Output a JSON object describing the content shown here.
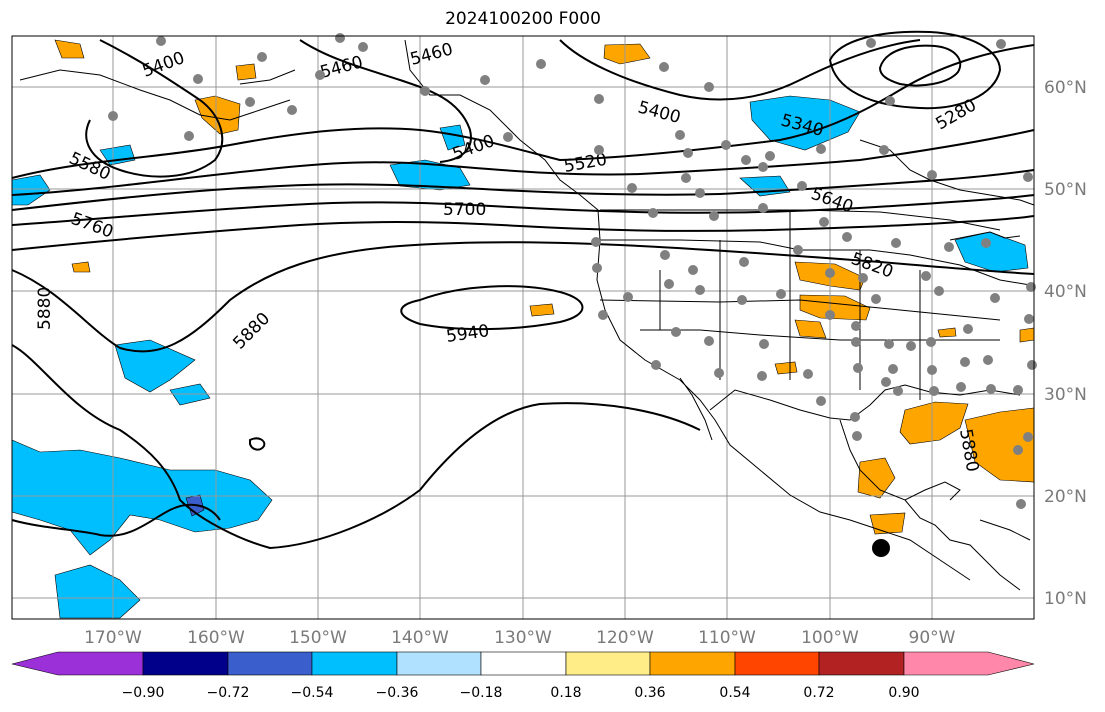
{
  "title": "2024100200 F000",
  "lat_labels": [
    "60°N",
    "50°N",
    "40°N",
    "30°N",
    "20°N",
    "10°N"
  ],
  "lon_labels": [
    "170°W",
    "160°W",
    "150°W",
    "140°W",
    "130°W",
    "120°W",
    "110°W",
    "100°W",
    "90°W"
  ],
  "contour_labels": [
    "5400",
    "5460",
    "5460",
    "5400",
    "5340",
    "5280",
    "5580",
    "5400",
    "5520",
    "5640",
    "5700",
    "5760",
    "5820",
    "5880",
    "5880",
    "5940",
    "5880"
  ],
  "colorbar": {
    "tick_labels": [
      "−0.90",
      "−0.72",
      "−0.54",
      "−0.36",
      "−0.18",
      "0.18",
      "0.36",
      "0.54",
      "0.72",
      "0.90"
    ],
    "colors": [
      "#9b30d9",
      "#00008b",
      "#3a5fcd",
      "#00bfff",
      "#b0e2ff",
      "#ffffff",
      "#ffee88",
      "#ffa500",
      "#ff4500",
      "#b22222",
      "#ff88aa"
    ]
  }
}
